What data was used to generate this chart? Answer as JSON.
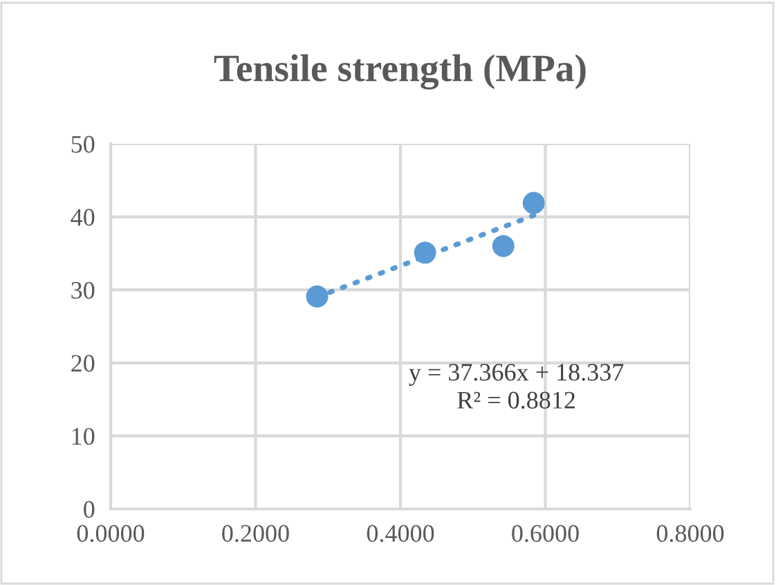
{
  "chart_data": {
    "type": "scatter",
    "title": "Tensile strength (MPa)",
    "series": [
      {
        "color": "#5b9bd5",
        "x": [
          0.285,
          0.434,
          0.542,
          0.584
        ],
        "values": [
          29.1,
          35.1,
          36.0,
          41.9
        ],
        "marker": "circle"
      },
      {
        "type": "line",
        "color": "#5b9bd5",
        "x": [
          0.285,
          0.584
        ],
        "values": [
          29.0,
          40.2
        ],
        "line_style": "dotted",
        "marker": "none"
      }
    ],
    "annotations": [
      "y = 37.366x + 18.337\nR² = 0.8812"
    ],
    "xlim": [
      0,
      0.8
    ],
    "xticks": [
      {
        "value": 0,
        "label": "0.0000"
      },
      {
        "value": 0.2,
        "label": "0.2000"
      },
      {
        "value": 0.4,
        "label": "0.4000"
      },
      {
        "value": 0.6,
        "label": "0.6000"
      },
      {
        "value": 0.8,
        "label": "0.8000"
      }
    ],
    "ylim": [
      0,
      50
    ],
    "yticks": [
      0,
      10,
      20,
      30,
      40,
      50
    ],
    "grid": true,
    "legend": false
  }
}
